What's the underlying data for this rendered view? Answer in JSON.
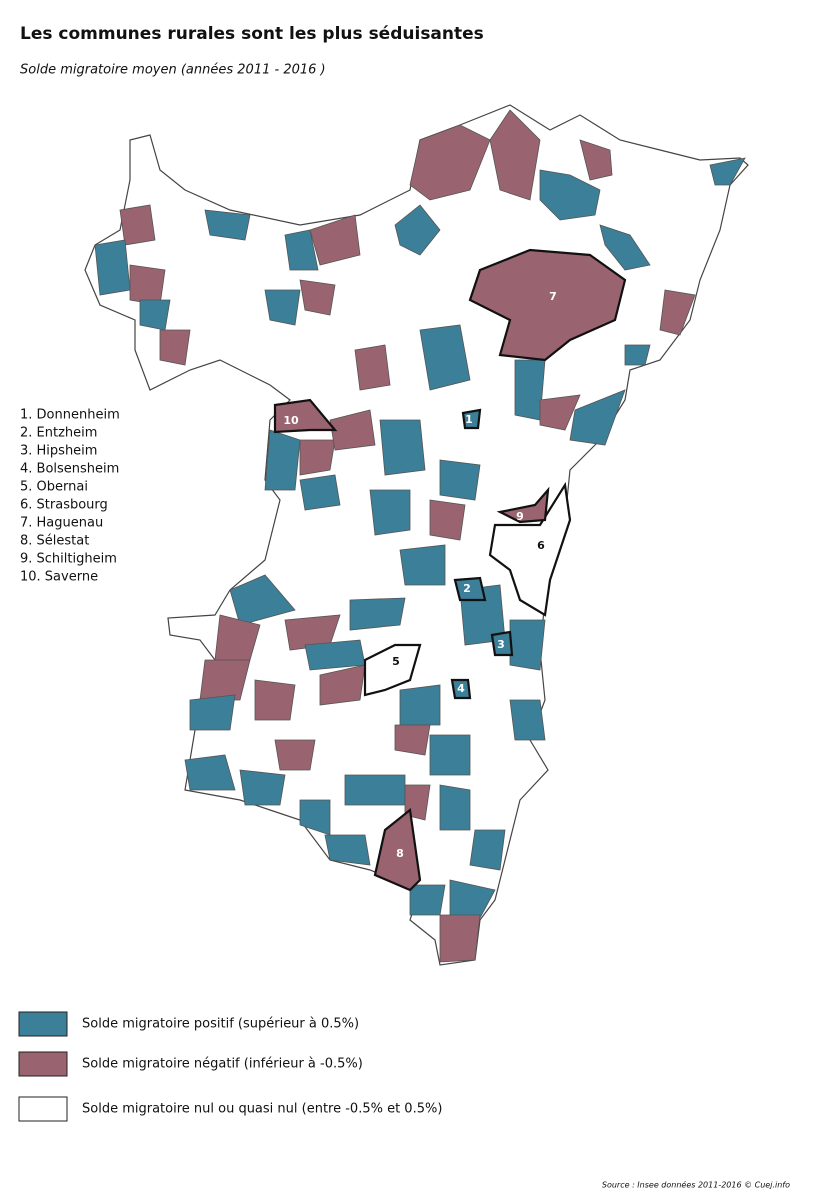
{
  "header": {
    "title": "Les communes rurales sont les plus séduisantes",
    "subtitle": "Solde migratoire moyen (années 2011 - 2016 )"
  },
  "communes_list": [
    "1. Donnenheim",
    "2. Entzheim",
    "3. Hipsheim",
    "4. Bolsensheim",
    "5. Obernai",
    "6. Strasbourg",
    "7. Haguenau",
    "8. Sélestat",
    "9. Schiltigheim",
    "10. Saverne"
  ],
  "map": {
    "labels": [
      "1",
      "2",
      "3",
      "4",
      "5",
      "6",
      "7",
      "8",
      "9",
      "10"
    ]
  },
  "legend": [
    {
      "label": "Solde migratoire positif (supérieur à 0.5%)",
      "color": "#3b7f98"
    },
    {
      "label": "Solde migratoire négatif (inférieur à -0.5%)",
      "color": "#9a6370"
    },
    {
      "label": "Solde migratoire nul ou quasi nul (entre -0.5% et 0.5%)",
      "color": "#ffffff"
    }
  ],
  "source": "Source : Insee données 2011-2016 © Cuej.info"
}
